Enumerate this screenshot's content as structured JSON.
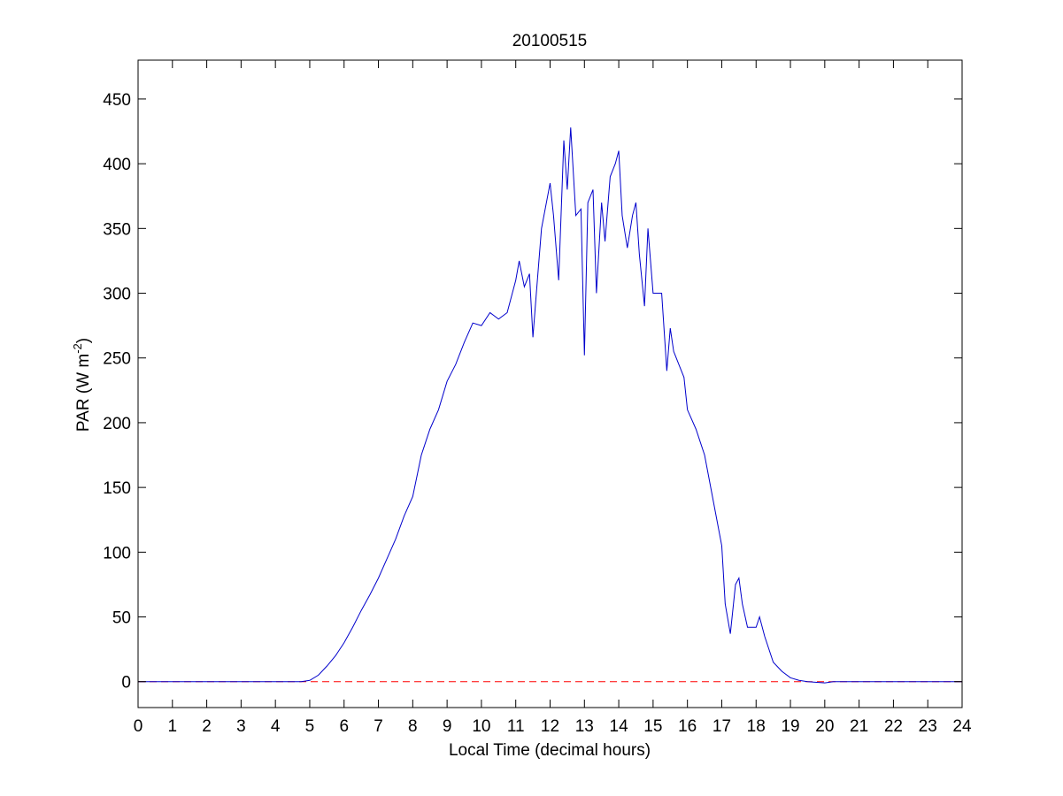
{
  "chart_data": {
    "type": "line",
    "title": "20100515",
    "x_label": "Local Time (decimal hours)",
    "y_label": {
      "text": "PAR (W m",
      "sup": "-2",
      "end": ")"
    },
    "x": [
      0,
      1,
      2,
      3,
      4,
      4.75,
      5,
      5.25,
      5.5,
      5.75,
      6,
      6.25,
      6.5,
      6.75,
      7,
      7.25,
      7.5,
      7.75,
      8,
      8.25,
      8.5,
      8.75,
      9,
      9.25,
      9.5,
      9.75,
      10,
      10.25,
      10.5,
      10.75,
      11,
      11.1,
      11.25,
      11.4,
      11.5,
      11.6,
      11.75,
      12,
      12.1,
      12.25,
      12.4,
      12.5,
      12.6,
      12.75,
      12.9,
      13,
      13.1,
      13.25,
      13.35,
      13.5,
      13.6,
      13.75,
      13.9,
      14,
      14.1,
      14.25,
      14.4,
      14.5,
      14.6,
      14.75,
      14.85,
      15,
      15.25,
      15.4,
      15.5,
      15.6,
      15.75,
      15.9,
      16,
      16.25,
      16.5,
      16.75,
      17,
      17.1,
      17.25,
      17.4,
      17.5,
      17.6,
      17.75,
      18,
      18.1,
      18.25,
      18.5,
      18.75,
      19,
      19.25,
      19.5,
      20,
      20.25,
      21,
      22,
      23,
      24
    ],
    "series": [
      {
        "color": "#0000cc",
        "values": [
          0,
          0,
          0,
          0,
          0,
          0,
          1,
          5,
          12,
          20,
          30,
          42,
          55,
          67,
          80,
          95,
          110,
          128,
          143,
          175,
          195,
          210,
          232,
          245,
          262,
          277,
          275,
          285,
          280,
          285,
          310,
          325,
          305,
          315,
          266,
          300,
          350,
          385,
          360,
          310,
          418,
          380,
          428,
          360,
          365,
          252,
          370,
          380,
          300,
          370,
          340,
          390,
          400,
          410,
          360,
          335,
          360,
          370,
          330,
          290,
          350,
          300,
          300,
          240,
          273,
          255,
          245,
          235,
          210,
          195,
          175,
          140,
          105,
          60,
          37,
          75,
          80,
          60,
          42,
          42,
          50,
          35,
          15,
          8,
          3,
          1,
          0,
          -1,
          0,
          0,
          0,
          0,
          0
        ]
      }
    ],
    "reference_line": {
      "value": 0,
      "color": "#ff0000"
    },
    "xlim": [
      0,
      24
    ],
    "xticks": [
      0,
      1,
      2,
      3,
      4,
      5,
      6,
      7,
      8,
      9,
      10,
      11,
      12,
      13,
      14,
      15,
      16,
      17,
      18,
      19,
      20,
      21,
      22,
      23,
      24
    ],
    "ylim": [
      -20,
      480
    ],
    "yticks": [
      0,
      50,
      100,
      150,
      200,
      250,
      300,
      350,
      400,
      450
    ]
  }
}
